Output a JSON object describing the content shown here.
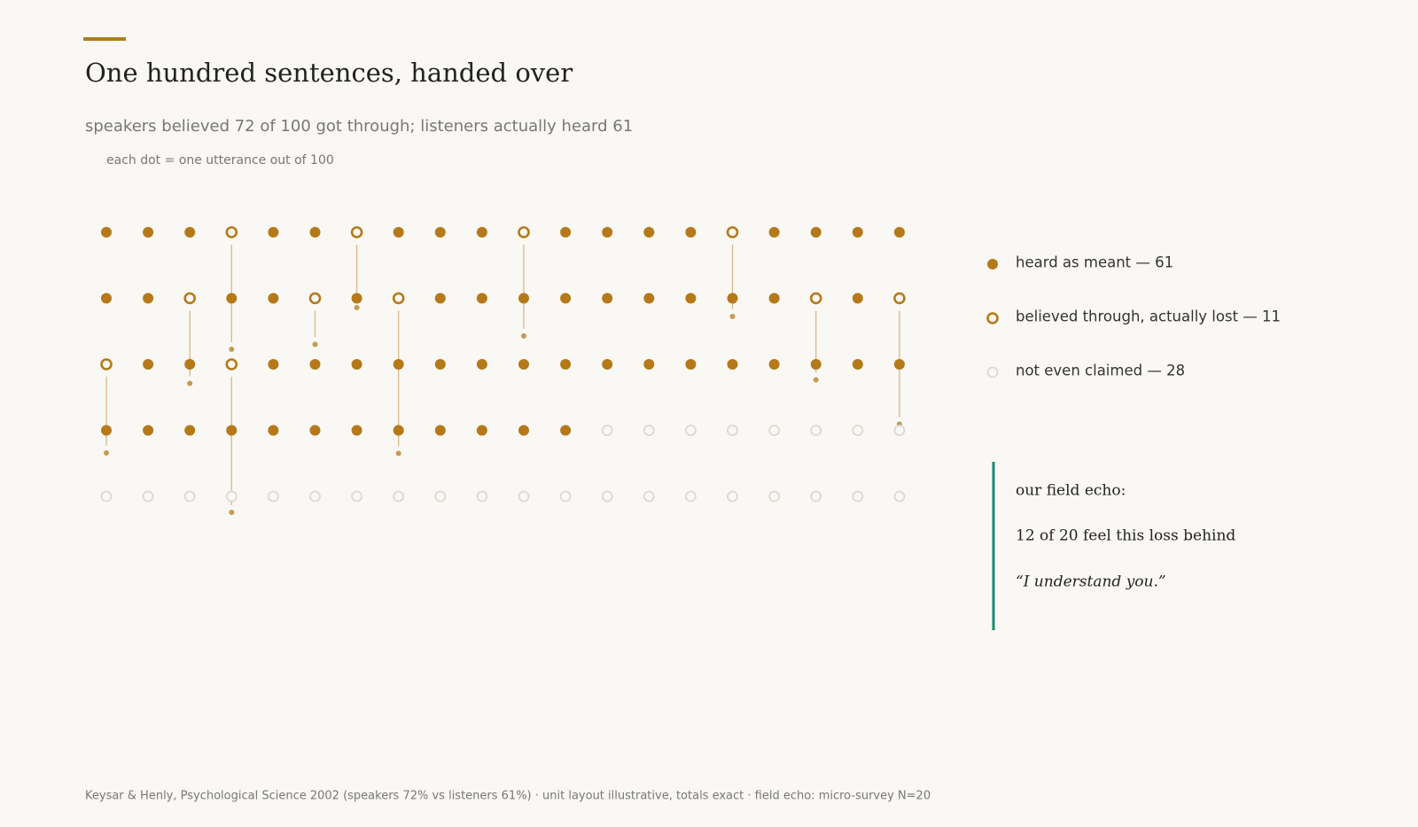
{
  "chart_data": {
    "type": "unit",
    "title": "One hundred sentences, handed over",
    "subtitle": "speakers believed 72 of 100 got through; listeners actually heard 61",
    "note": "each dot = one utterance out of 100",
    "series": [
      {
        "name": "heard as meant — 61",
        "value": 61,
        "color": "#b5791a"
      },
      {
        "name": "believed through, actually lost — 11",
        "value": 11,
        "color": "#b5791a"
      },
      {
        "name": "not even claimed — 28",
        "value": 28,
        "color": "#dcd9d3"
      }
    ],
    "grid": [
      [
        0,
        0,
        0,
        1,
        0,
        0,
        1,
        0,
        0,
        0,
        1,
        0,
        0,
        0,
        0,
        1,
        0,
        0,
        0,
        0
      ],
      [
        0,
        0,
        1,
        0,
        0,
        1,
        0,
        1,
        0,
        0,
        0,
        0,
        0,
        0,
        0,
        0,
        0,
        1,
        0,
        1
      ],
      [
        1,
        0,
        0,
        1,
        0,
        0,
        0,
        0,
        0,
        0,
        0,
        0,
        0,
        0,
        0,
        0,
        0,
        0,
        0,
        0
      ],
      [
        0,
        0,
        0,
        0,
        0,
        0,
        0,
        0,
        0,
        0,
        0,
        0,
        2,
        2,
        2,
        2,
        2,
        2,
        2,
        2
      ],
      [
        2,
        2,
        2,
        2,
        2,
        2,
        2,
        2,
        2,
        2,
        2,
        2,
        2,
        2,
        2,
        2,
        2,
        2,
        2,
        2
      ]
    ],
    "echo": {
      "heading": "our field echo:",
      "stat": "12 of 20 feel this loss behind",
      "quote": "“I understand you.”"
    },
    "source": "Keysar & Henly, Psychological Science 2002 (speakers 72% vs listeners 61%)  ·  unit layout illustrative, totals exact  ·  field echo: micro-survey N=20"
  }
}
